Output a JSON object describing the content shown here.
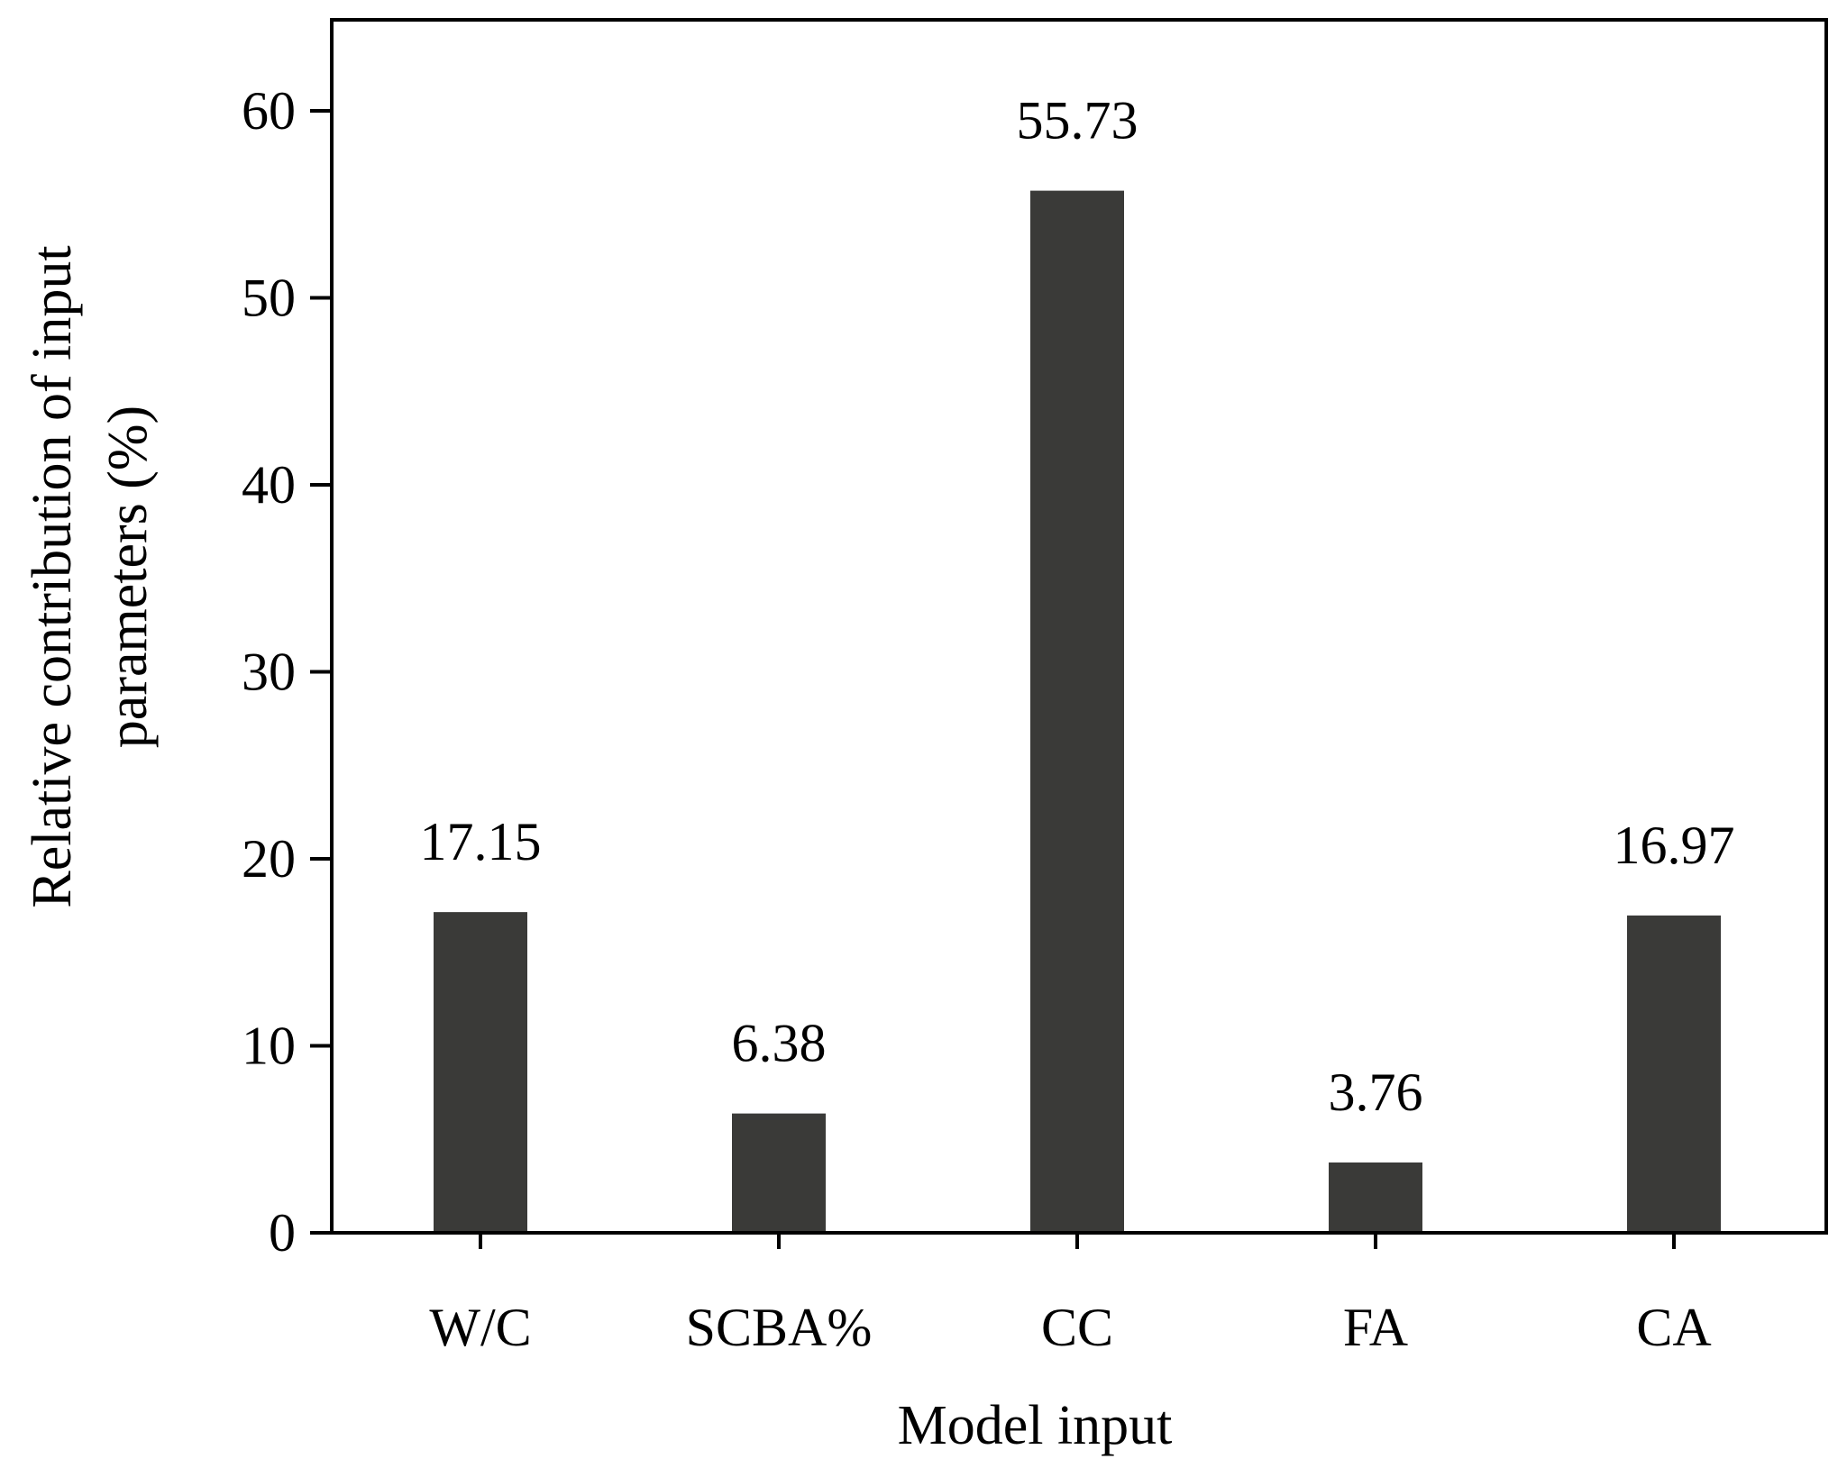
{
  "chart_data": {
    "type": "bar",
    "categories": [
      "W/C",
      "SCBA%",
      "CC",
      "FA",
      "CA"
    ],
    "values": [
      17.15,
      6.38,
      55.73,
      3.76,
      16.97
    ],
    "value_labels": [
      "17.15",
      "6.38",
      "55.73",
      "3.76",
      "16.97"
    ],
    "title": "",
    "xlabel": "Model input",
    "ylabel_lines": [
      "Relative contribution of input",
      "parameters (%)"
    ],
    "ylim": [
      0,
      65
    ],
    "yticks": [
      0,
      10,
      20,
      30,
      40,
      50,
      60
    ],
    "ytick_labels": [
      "0",
      "10",
      "20",
      "30",
      "40",
      "50",
      "60"
    ],
    "grid": false,
    "legend": "none",
    "bar_color": "#3a3a38",
    "axis_color": "#000000"
  }
}
